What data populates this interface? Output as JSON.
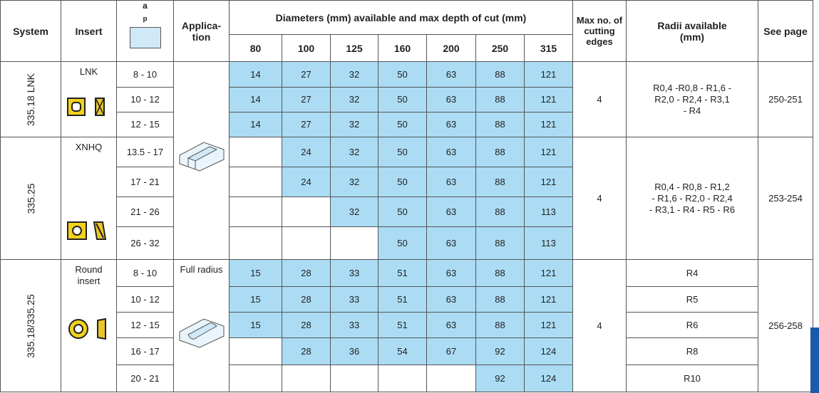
{
  "header": {
    "system": "System",
    "insert": "Insert",
    "depth_symbol": "a",
    "depth_subscript": "p",
    "application": [
      "Applica-",
      "tion"
    ],
    "diameters_title": "Diameters (mm) available and max depth of cut (mm)",
    "diameters": [
      80,
      100,
      125,
      160,
      200,
      250,
      315
    ],
    "edges": [
      "Max no. of",
      "cutting",
      "edges"
    ],
    "radii": [
      "Radii available",
      "(mm)"
    ],
    "page": "See page"
  },
  "groups": [
    {
      "system": "335.18 LNK",
      "insert": [
        "LNK"
      ],
      "edges": 4,
      "radii": [
        "R0,4 -R0,8 - R1,6 -",
        "R2,0 - R2,4 - R3,1",
        "- R4"
      ],
      "page": "250-251",
      "rows": [
        {
          "depth": "8 - 10",
          "values": [
            14,
            27,
            32,
            50,
            63,
            88,
            121
          ]
        },
        {
          "depth": "10 - 12",
          "values": [
            14,
            27,
            32,
            50,
            63,
            88,
            121
          ]
        },
        {
          "depth": "12 - 15",
          "values": [
            14,
            27,
            32,
            50,
            63,
            88,
            121
          ]
        }
      ]
    },
    {
      "system": "335.25",
      "insert": [
        "XNHQ"
      ],
      "edges": 4,
      "radii": [
        "R0,4 - R0,8 -  R1,2",
        "- R1,6 - R2,0 - R2,4",
        "- R3,1 - R4 - R5 - R6"
      ],
      "page": "253-254",
      "rows": [
        {
          "depth": "13.5 - 17",
          "values": [
            null,
            24,
            32,
            50,
            63,
            88,
            121
          ]
        },
        {
          "depth": "17 - 21",
          "values": [
            null,
            24,
            32,
            50,
            63,
            88,
            121
          ]
        },
        {
          "depth": "21 - 26",
          "values": [
            null,
            null,
            32,
            50,
            63,
            88,
            113
          ]
        },
        {
          "depth": "26 - 32",
          "values": [
            null,
            null,
            null,
            50,
            63,
            88,
            113
          ]
        }
      ]
    },
    {
      "system": "335.18/335.25",
      "insert": [
        "Round",
        "insert"
      ],
      "edges": 4,
      "application": "Full radius",
      "page": "256-258",
      "rows": [
        {
          "depth": "8 - 10",
          "values": [
            15,
            28,
            33,
            51,
            63,
            88,
            121
          ],
          "radii": "R4"
        },
        {
          "depth": "10 - 12",
          "values": [
            15,
            28,
            33,
            51,
            63,
            88,
            121
          ],
          "radii": "R5"
        },
        {
          "depth": "12 - 15",
          "values": [
            15,
            28,
            33,
            51,
            63,
            88,
            121
          ],
          "radii": "R6"
        },
        {
          "depth": "16 - 17",
          "values": [
            null,
            28,
            36,
            54,
            67,
            92,
            124
          ],
          "radii": "R8"
        },
        {
          "depth": "20 - 21",
          "values": [
            null,
            null,
            null,
            null,
            null,
            92,
            124
          ],
          "radii": "R10"
        }
      ]
    }
  ]
}
